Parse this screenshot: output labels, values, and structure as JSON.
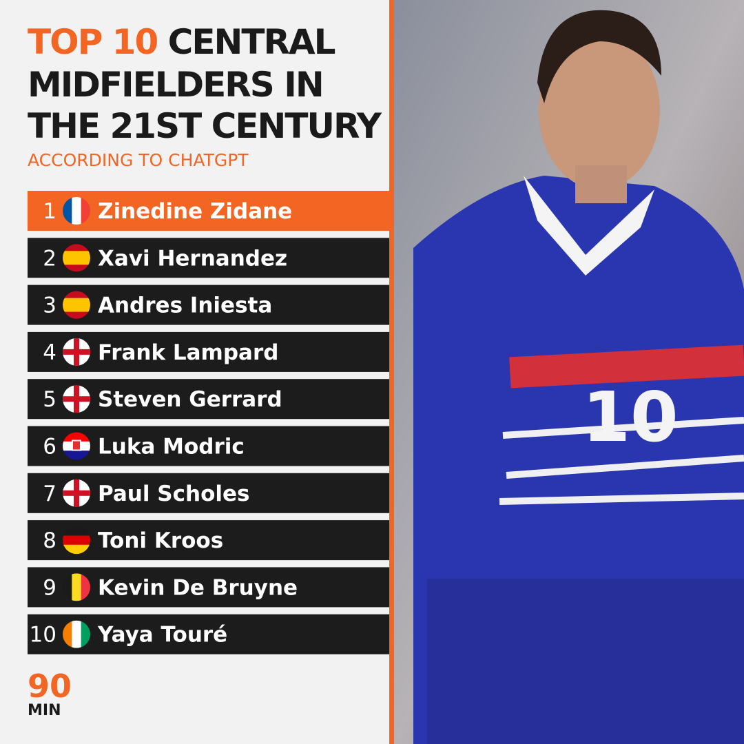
{
  "header": {
    "title_highlight": "TOP 10",
    "title_rest": "CENTRAL",
    "title_line2": "MIDFIELDERS IN",
    "title_line3": "THE 21ST CENTURY",
    "subtitle": "ACCORDING TO CHATGPT"
  },
  "list": [
    {
      "rank": 1,
      "name": "Zinedine Zidane",
      "flag": "fr"
    },
    {
      "rank": 2,
      "name": "Xavi Hernandez",
      "flag": "es"
    },
    {
      "rank": 3,
      "name": "Andres Iniesta",
      "flag": "es"
    },
    {
      "rank": 4,
      "name": "Frank Lampard",
      "flag": "en"
    },
    {
      "rank": 5,
      "name": "Steven Gerrard",
      "flag": "en"
    },
    {
      "rank": 6,
      "name": "Luka Modric",
      "flag": "hr"
    },
    {
      "rank": 7,
      "name": "Paul Scholes",
      "flag": "en"
    },
    {
      "rank": 8,
      "name": "Toni Kroos",
      "flag": "de"
    },
    {
      "rank": 9,
      "name": "Kevin De Bruyne",
      "flag": "be"
    },
    {
      "rank": 10,
      "name": "Yaya Touré",
      "flag": "ci"
    }
  ],
  "photo": {
    "shirt_number": "10"
  },
  "logo": {
    "top": "90",
    "bottom": "MIN"
  }
}
